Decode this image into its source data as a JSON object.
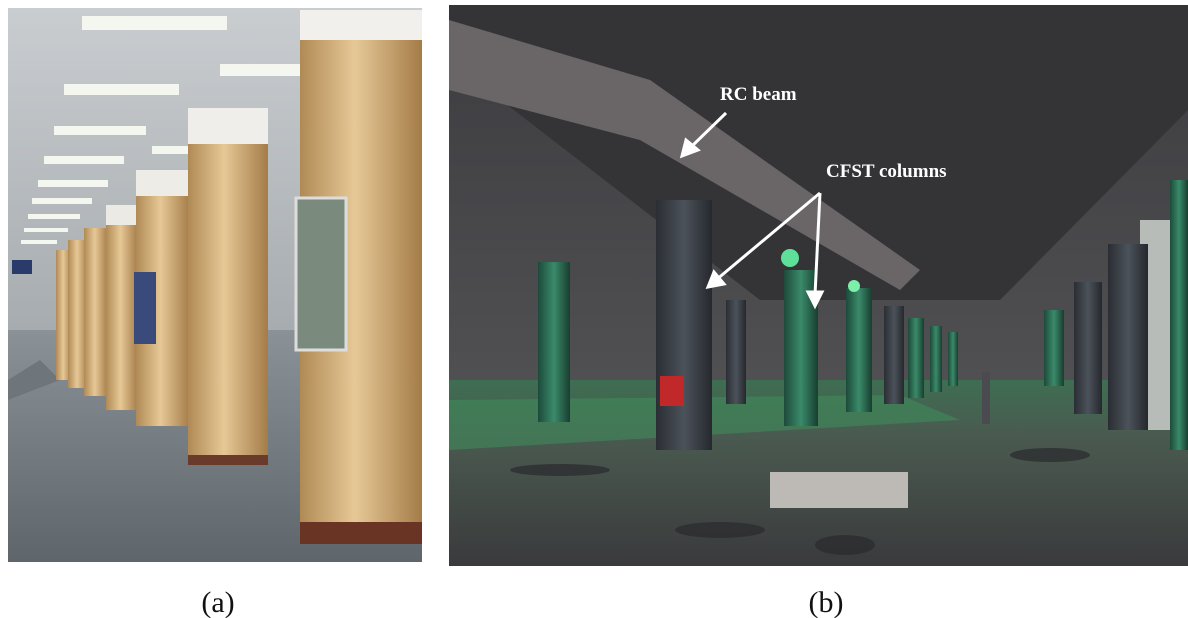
{
  "panels": [
    {
      "caption": "(a)"
    },
    {
      "caption": "(b)",
      "annotations": [
        "RC beam",
        "CFST columns"
      ]
    }
  ]
}
